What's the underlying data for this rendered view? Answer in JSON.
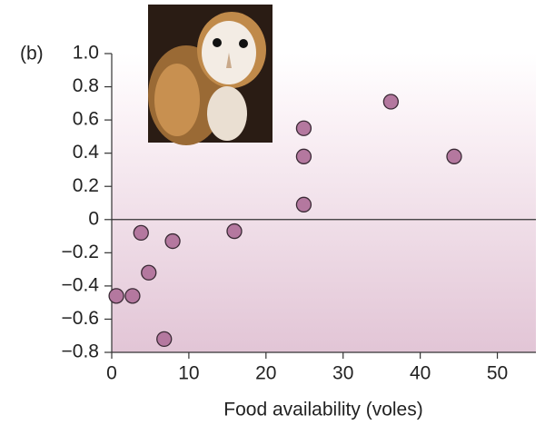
{
  "chart_data": {
    "type": "scatter",
    "panel_label": "(b)",
    "x_label": "Food availability (voles)",
    "x": [
      0.6,
      2.7,
      3.8,
      4.8,
      6.8,
      7.9,
      15.9,
      24.9,
      24.9,
      24.9,
      36.2,
      44.4
    ],
    "values": [
      -0.46,
      -0.46,
      -0.08,
      -0.32,
      -0.72,
      -0.13,
      -0.07,
      0.55,
      0.38,
      0.09,
      0.71,
      0.38
    ],
    "color": "#b4789f",
    "xlim": [
      0,
      55
    ],
    "xticks": [
      0,
      10,
      20,
      30,
      40,
      50
    ],
    "ylim": [
      -0.8,
      1.0
    ],
    "yticks": [
      {
        "value": -0.8,
        "label": "−0.8"
      },
      {
        "value": -0.6,
        "label": "−0.6"
      },
      {
        "value": -0.4,
        "label": "−0.4"
      },
      {
        "value": -0.2,
        "label": "−0.2"
      },
      0,
      0.2,
      0.4,
      0.6,
      0.8,
      {
        "value": 1.0,
        "label": "1.0"
      }
    ],
    "reference_line": 0
  }
}
